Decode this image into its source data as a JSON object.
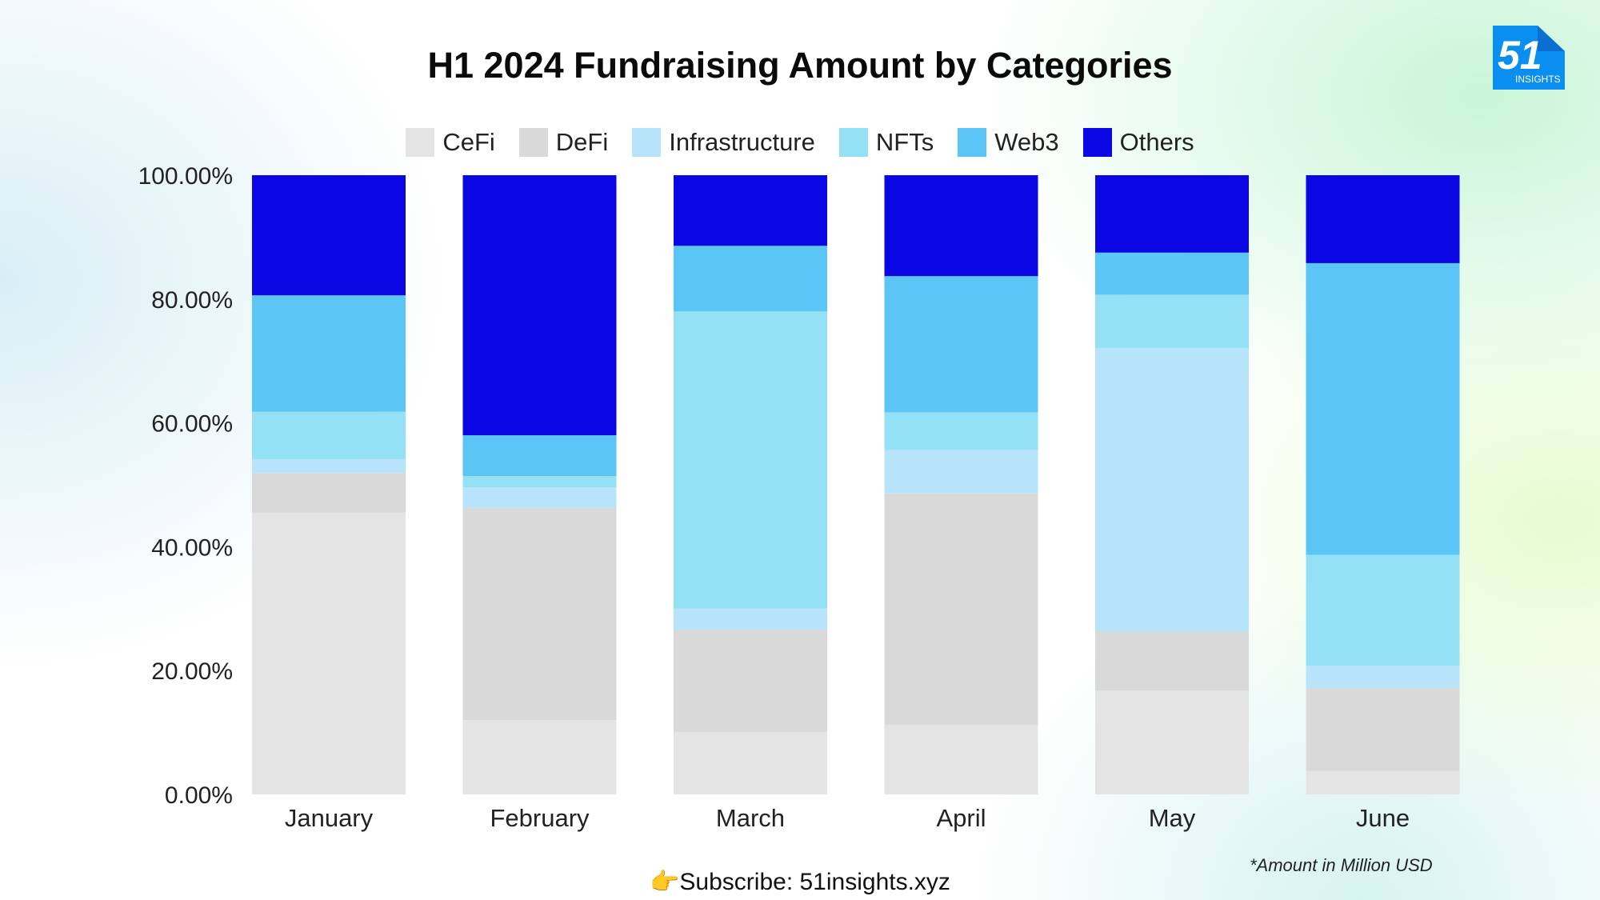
{
  "title": "H1 2024 Fundraising Amount by Categories",
  "logo": {
    "number": "51",
    "word": "INSIGHTS"
  },
  "note": "*Amount in Million USD",
  "subscribe": {
    "icon": "👉",
    "text": "Subscribe: 51insights.xyz"
  },
  "colors": {
    "CeFi": "#e4e4e4",
    "DeFi": "#d9d9d9",
    "Infrastructure": "#b8e4fb",
    "NFTs": "#94e0f5",
    "Web3": "#5bc5f5",
    "Others": "#0b06e4",
    "logo": "#0a8ff0"
  },
  "chart_data": {
    "type": "bar",
    "stacked": true,
    "title": "H1 2024 Fundraising Amount by Categories",
    "xlabel": "",
    "ylabel": "",
    "ylim": [
      0,
      100
    ],
    "yticks": [
      "0.00%",
      "20.00%",
      "40.00%",
      "60.00%",
      "80.00%",
      "100.00%"
    ],
    "legend_position": "top-center",
    "categories": [
      "January",
      "February",
      "March",
      "April",
      "May",
      "June"
    ],
    "series": [
      {
        "name": "CeFi",
        "values": [
          45.5,
          12.0,
          10.1,
          11.2,
          16.8,
          3.8
        ]
      },
      {
        "name": "DeFi",
        "values": [
          6.4,
          34.3,
          16.5,
          37.4,
          9.5,
          13.4
        ]
      },
      {
        "name": "Infrastructure",
        "values": [
          2.2,
          3.3,
          3.4,
          7.0,
          45.8,
          3.6
        ]
      },
      {
        "name": "NFTs",
        "values": [
          7.7,
          1.8,
          48.0,
          6.1,
          8.6,
          17.9
        ]
      },
      {
        "name": "Web3",
        "values": [
          18.8,
          6.6,
          10.6,
          22.0,
          6.8,
          47.1
        ]
      },
      {
        "name": "Others",
        "values": [
          19.4,
          42.0,
          11.4,
          16.3,
          12.5,
          14.2
        ]
      }
    ]
  }
}
